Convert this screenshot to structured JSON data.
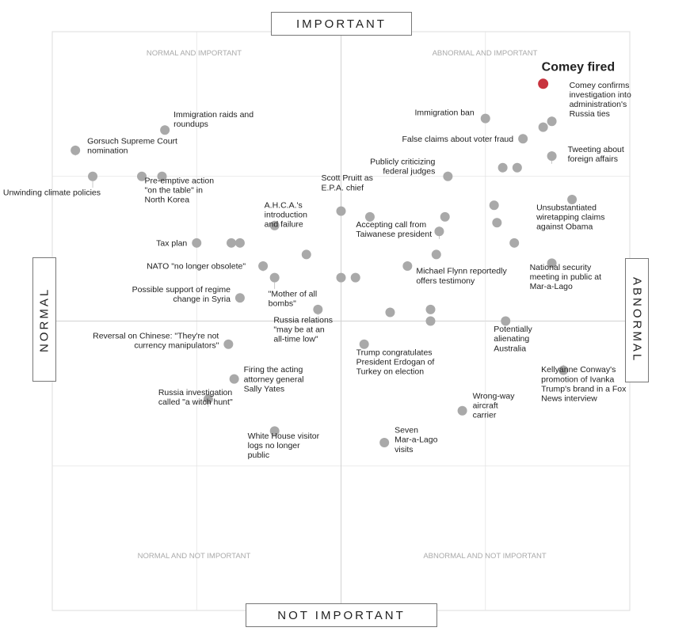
{
  "chart_data": {
    "type": "scatter",
    "axes": {
      "top": "IMPORTANT",
      "bottom": "NOT IMPORTANT",
      "left": "NORMAL",
      "right": "ABNORMAL"
    },
    "quadrants": {
      "top_left": "NORMAL AND IMPORTANT",
      "top_right": "ABNORMAL AND IMPORTANT",
      "bottom_left": "NORMAL AND NOT IMPORTANT",
      "bottom_right": "ABNORMAL AND NOT IMPORTANT"
    },
    "xlim": [
      -1,
      1
    ],
    "ylim": [
      -1,
      1
    ],
    "grid": true,
    "highlight_color": "#c8333e",
    "point_color": "#a9a9a9",
    "points": [
      {
        "x": 0.7,
        "y": 0.82,
        "label": "Comey fired",
        "highlight": true
      },
      {
        "x": 0.73,
        "y": 0.69,
        "label": "Comey confirms investigation into administration's Russia ties"
      },
      {
        "x": 0.7,
        "y": 0.67
      },
      {
        "x": 0.5,
        "y": 0.7,
        "label": "Immigration ban"
      },
      {
        "x": 0.63,
        "y": 0.63,
        "label": "False claims about voter fraud"
      },
      {
        "x": 0.73,
        "y": 0.57,
        "label": "Tweeting about foreign affairs"
      },
      {
        "x": 0.61,
        "y": 0.53
      },
      {
        "x": 0.56,
        "y": 0.53
      },
      {
        "x": 0.37,
        "y": 0.5,
        "label": "Publicly criticizing federal judges"
      },
      {
        "x": -0.92,
        "y": 0.59,
        "label": "Gorsuch Supreme Court nomination"
      },
      {
        "x": -0.61,
        "y": 0.66,
        "label": "Immigration raids and roundups"
      },
      {
        "x": -0.62,
        "y": 0.5,
        "label": "Pre-emptive action \"on the table\" in North Korea"
      },
      {
        "x": -0.86,
        "y": 0.5,
        "label": "Unwinding climate policies"
      },
      {
        "x": -0.69,
        "y": 0.5
      },
      {
        "x": 0.0,
        "y": 0.38,
        "label": "Scott Pruitt as E.P.A. chief"
      },
      {
        "x": 0.1,
        "y": 0.36
      },
      {
        "x": -0.23,
        "y": 0.33,
        "label": "A.H.C.A.'s introduction and failure"
      },
      {
        "x": -0.12,
        "y": 0.23
      },
      {
        "x": 0.36,
        "y": 0.36
      },
      {
        "x": 0.34,
        "y": 0.31,
        "label": "Accepting call from Taiwanese president"
      },
      {
        "x": 0.33,
        "y": 0.23
      },
      {
        "x": 0.53,
        "y": 0.4
      },
      {
        "x": 0.54,
        "y": 0.34
      },
      {
        "x": 0.8,
        "y": 0.42,
        "label": "Unsubstantiated wiretapping claims against Obama"
      },
      {
        "x": 0.6,
        "y": 0.27
      },
      {
        "x": 0.73,
        "y": 0.2,
        "label": "National security meeting in public at Mar-a-Lago"
      },
      {
        "x": -0.5,
        "y": 0.27,
        "label": "Tax plan"
      },
      {
        "x": -0.38,
        "y": 0.27
      },
      {
        "x": -0.35,
        "y": 0.27
      },
      {
        "x": -0.27,
        "y": 0.19,
        "label": "NATO \"no longer obsolete\""
      },
      {
        "x": -0.23,
        "y": 0.15,
        "label": "\"Mother of all bombs\""
      },
      {
        "x": 0.0,
        "y": 0.15
      },
      {
        "x": 0.05,
        "y": 0.15
      },
      {
        "x": 0.23,
        "y": 0.19,
        "label": "Michael Flynn reportedly offers testimony"
      },
      {
        "x": -0.35,
        "y": 0.08,
        "label": "Possible support of regime change in Syria"
      },
      {
        "x": -0.08,
        "y": 0.04,
        "label": "Russia relations \"may be at an all-time low\""
      },
      {
        "x": 0.17,
        "y": 0.03
      },
      {
        "x": 0.31,
        "y": 0.04
      },
      {
        "x": 0.31,
        "y": 0.0
      },
      {
        "x": 0.57,
        "y": 0.0,
        "label": "Potentially alienating Australia"
      },
      {
        "x": -0.39,
        "y": -0.08,
        "label": "Reversal on Chinese: \"They're not currency manipulators\""
      },
      {
        "x": 0.08,
        "y": -0.08,
        "label": "Trump congratulates President Erdogan of Turkey on election"
      },
      {
        "x": 0.77,
        "y": -0.17,
        "label": "Kellyanne Conway's promotion of Ivanka Trump's brand in a Fox News interview"
      },
      {
        "x": -0.37,
        "y": -0.2,
        "label": "Firing the acting attorney general Sally Yates"
      },
      {
        "x": -0.46,
        "y": -0.27,
        "label": "Russia investigation called \"a witch hunt\""
      },
      {
        "x": 0.42,
        "y": -0.31,
        "label": "Wrong-way aircraft carrier"
      },
      {
        "x": -0.23,
        "y": -0.38,
        "label": "White House visitor logs no longer public"
      },
      {
        "x": 0.15,
        "y": -0.42,
        "label": "Seven Mar-a-Lago visits"
      }
    ]
  }
}
